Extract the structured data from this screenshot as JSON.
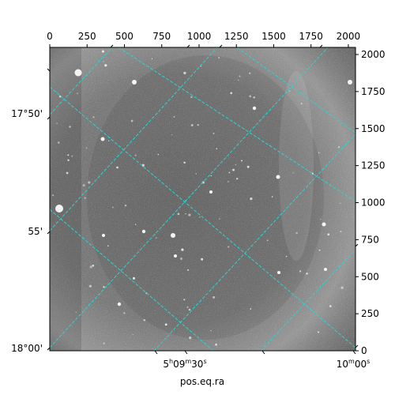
{
  "chart_data": {
    "type": "image",
    "xlabel": "pos.eq.ra",
    "pixel_axes": {
      "x": {
        "range": [
          0,
          2048
        ],
        "ticks": [
          "0",
          "250",
          "500",
          "750",
          "1000",
          "1250",
          "1500",
          "1750",
          "2000"
        ]
      },
      "y": {
        "range": [
          0,
          2048
        ],
        "ticks": [
          "0",
          "250",
          "500",
          "750",
          "1000",
          "1250",
          "1500",
          "1750",
          "2000"
        ]
      }
    },
    "world_axes": {
      "ra": {
        "label": "pos.eq.ra",
        "ticks": [
          {
            "h": "5",
            "m": "09",
            "s": "30",
            "unit_h": "h",
            "unit_m": "m",
            "unit_s": "s"
          },
          {
            "m": "10",
            "s": "00",
            "unit_m": "m",
            "unit_s": "s"
          }
        ]
      },
      "dec": {
        "ticks": [
          "17°50'",
          "55'",
          "18°00'"
        ]
      }
    },
    "grid": {
      "color": "#2ad4d4",
      "style": "dashed",
      "on": true
    },
    "colors": {
      "background": "#808080",
      "frame": "#000000"
    }
  }
}
